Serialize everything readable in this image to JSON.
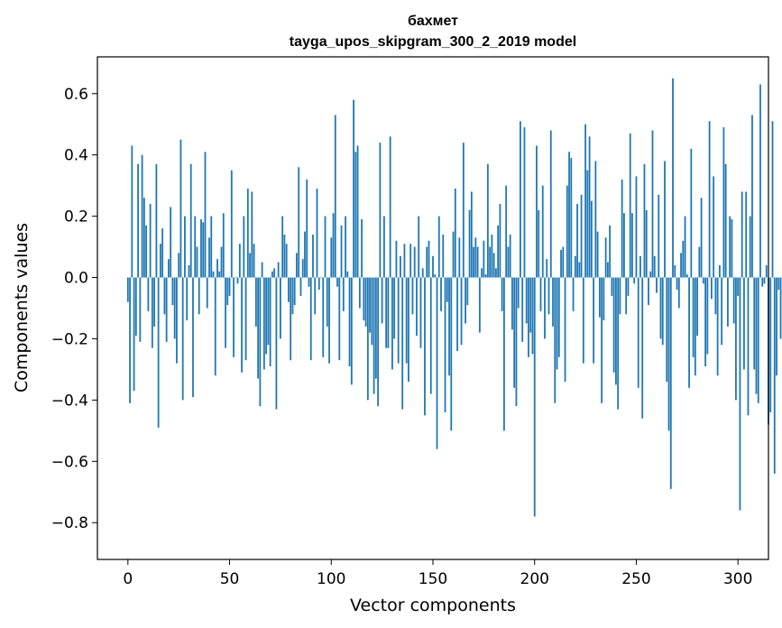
{
  "chart_data": {
    "type": "bar",
    "title": "бахмет",
    "subtitle": "tayga_upos_skipgram_300_2_2019 model",
    "xlabel": "Vector components",
    "ylabel": "Components values",
    "xlim": [
      -15,
      315
    ],
    "ylim": [
      -0.92,
      0.72
    ],
    "xticks": [
      0,
      50,
      100,
      150,
      200,
      250,
      300
    ],
    "yticks": [
      -0.8,
      -0.6,
      -0.4,
      -0.2,
      0.0,
      0.2,
      0.4,
      0.6
    ],
    "xtick_labels": [
      "0",
      "50",
      "100",
      "150",
      "200",
      "250",
      "300"
    ],
    "ytick_labels": [
      "−0.8",
      "−0.6",
      "−0.4",
      "−0.2",
      "0.0",
      "0.2",
      "0.4",
      "0.6"
    ],
    "bar_color": "#1f77b4",
    "grid": false,
    "values": [
      -0.08,
      -0.41,
      0.43,
      -0.37,
      -0.19,
      0.37,
      -0.21,
      0.4,
      0.26,
      0.17,
      -0.11,
      0.24,
      -0.23,
      -0.16,
      0.37,
      -0.49,
      0.11,
      0.16,
      -0.12,
      -0.21,
      0.06,
      0.23,
      -0.09,
      -0.2,
      -0.28,
      0.08,
      0.45,
      -0.4,
      0.2,
      -0.14,
      0.04,
      0.37,
      -0.39,
      0.2,
      0.1,
      -0.12,
      0.19,
      0.18,
      0.41,
      -0.1,
      0.13,
      0.2,
      0.02,
      -0.32,
      0.06,
      0.02,
      0.1,
      0.21,
      -0.23,
      -0.09,
      -0.06,
      0.35,
      -0.26,
      0.0,
      -0.02,
      0.11,
      -0.31,
      0.2,
      -0.27,
      0.29,
      0.08,
      0.28,
      0.11,
      -0.16,
      -0.33,
      -0.42,
      0.05,
      -0.3,
      -0.25,
      -0.22,
      -0.29,
      0.02,
      0.03,
      -0.43,
      0.05,
      -0.2,
      0.2,
      0.14,
      0.11,
      -0.08,
      -0.27,
      -0.12,
      -0.09,
      0.08,
      0.36,
      -0.06,
      0.06,
      0.15,
      0.32,
      -0.03,
      -0.27,
      0.14,
      -0.12,
      0.29,
      -0.04,
      0.0,
      -0.26,
      0.2,
      -0.16,
      -0.28,
      0.13,
      0.21,
      0.53,
      -0.03,
      -0.27,
      0.17,
      -0.11,
      0.2,
      0.02,
      -0.29,
      -0.35,
      0.58,
      0.41,
      0.43,
      -0.1,
      0.19,
      -0.14,
      -0.16,
      -0.4,
      -0.18,
      -0.22,
      -0.38,
      -0.33,
      -0.42,
      0.44,
      -0.15,
      0.2,
      -0.23,
      -0.23,
      0.46,
      -0.3,
      -0.2,
      0.12,
      -0.28,
      0.07,
      -0.43,
      0.11,
      -0.28,
      -0.34,
      0.11,
      -0.12,
      0.1,
      -0.19,
      0.2,
      -0.23,
      0.03,
      -0.45,
      0.1,
      0.12,
      -0.38,
      0.07,
      0.01,
      -0.56,
      0.2,
      -0.11,
      0.14,
      -0.44,
      -0.08,
      -0.32,
      -0.5,
      0.15,
      0.29,
      -0.24,
      0.13,
      -0.22,
      0.44,
      -0.15,
      -0.09,
      0.22,
      0.28,
      0.1,
      0.13,
      0.1,
      -0.18,
      0.03,
      0.12,
      0.01,
      0.37,
      0.1,
      0.14,
      0.08,
      0.03,
      0.17,
      0.24,
      -0.11,
      -0.5,
      0.3,
      0.1,
      0.14,
      -0.17,
      -0.36,
      -0.42,
      -0.1,
      0.51,
      -0.21,
      0.49,
      -0.15,
      -0.26,
      -0.18,
      -0.25,
      -0.78,
      0.43,
      0.22,
      -0.11,
      0.3,
      -0.2,
      0.06,
      -0.12,
      0.48,
      -0.16,
      -0.41,
      -0.3,
      -0.26,
      0.09,
      0.1,
      -0.34,
      0.3,
      0.41,
      0.39,
      -0.11,
      0.07,
      0.24,
      0.05,
      0.27,
      -0.28,
      0.5,
      0.35,
      0.46,
      0.25,
      -0.28,
      0.38,
      0.15,
      -0.13,
      -0.41,
      -0.14,
      0.13,
      0.05,
      0.17,
      -0.06,
      -0.31,
      -0.35,
      -0.43,
      -0.12,
      0.32,
      0.21,
      -0.12,
      -0.06,
      0.47,
      0.21,
      -0.02,
      0.33,
      -0.36,
      0.07,
      -0.46,
      0.37,
      0.22,
      -0.09,
      0.02,
      0.48,
      0.07,
      -0.05,
      0.27,
      -0.2,
      -0.22,
      0.38,
      -0.34,
      -0.5,
      -0.69,
      0.65,
      0.04,
      -0.04,
      -0.1,
      0.08,
      0.12,
      0.2,
      0.01,
      -0.36,
      0.42,
      -0.26,
      -0.32,
      -0.19,
      0.1,
      0.26,
      -0.02,
      -0.29,
      -0.25,
      0.51,
      -0.07,
      0.33,
      -0.12,
      -0.32,
      0.04,
      -0.22,
      0.49,
      0.37,
      -0.16,
      0.2,
      0.19,
      -0.15,
      -0.4,
      -0.06,
      -0.76,
      0.28,
      -0.3,
      0.28,
      -0.45,
      0.2,
      0.53,
      -0.3,
      -0.38,
      -0.41,
      0.63,
      -0.03,
      -0.02,
      0.04,
      -0.48,
      -0.44,
      0.51,
      -0.64,
      -0.32,
      -0.04,
      -0.2
    ]
  }
}
